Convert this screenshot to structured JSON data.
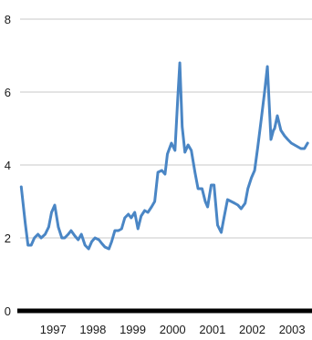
{
  "chart_data": {
    "type": "line",
    "title": "",
    "xlabel": "",
    "ylabel": "",
    "ylim": [
      0,
      8
    ],
    "yticks": [
      0,
      2,
      4,
      6,
      8
    ],
    "xlim": [
      1996.67,
      2004.0
    ],
    "xticks": [
      {
        "value": 1997.5,
        "label": "1997"
      },
      {
        "value": 1998.5,
        "label": "1998"
      },
      {
        "value": 1999.5,
        "label": "1999"
      },
      {
        "value": 2000.5,
        "label": "2000"
      },
      {
        "value": 2001.5,
        "label": "2001"
      },
      {
        "value": 2002.5,
        "label": "2002"
      },
      {
        "value": 2003.5,
        "label": "2003"
      }
    ],
    "grid": true,
    "legend": "none",
    "color": "#4a86c5",
    "baseline_color": "#000000",
    "series": [
      {
        "x": [
          1996.7,
          1996.8,
          1996.87,
          1996.95,
          1997.03,
          1997.12,
          1997.2,
          1997.3,
          1997.39,
          1997.46,
          1997.54,
          1997.63,
          1997.72,
          1997.79,
          1997.88,
          1997.95,
          1998.05,
          1998.13,
          1998.21,
          1998.3,
          1998.39,
          1998.47,
          1998.55,
          1998.65,
          1998.72,
          1998.8,
          1998.9,
          1998.97,
          1999.05,
          1999.14,
          1999.22,
          1999.3,
          1999.39,
          1999.46,
          1999.55,
          1999.63,
          1999.71,
          1999.8,
          1999.88,
          1999.97,
          2000.05,
          2000.13,
          2000.23,
          2000.31,
          2000.37,
          2000.47,
          2000.56,
          2000.63,
          2000.68,
          2000.74,
          2000.81,
          2000.89,
          2000.97,
          2001.06,
          2001.14,
          2001.24,
          2001.32,
          2001.38,
          2001.47,
          2001.54,
          2001.63,
          2001.72,
          2001.79,
          2001.88,
          2001.97,
          2002.06,
          2002.14,
          2002.22,
          2002.32,
          2002.39,
          2002.48,
          2002.56,
          2002.64,
          2002.73,
          2002.81,
          2002.88,
          2002.97,
          2003.03,
          2003.06,
          2003.13,
          2003.22,
          2003.31,
          2003.39,
          2003.48,
          2003.56,
          2003.64,
          2003.72,
          2003.81,
          2003.89
        ],
        "values": [
          3.4,
          2.4,
          1.8,
          1.8,
          2.0,
          2.1,
          2.0,
          2.1,
          2.3,
          2.7,
          2.9,
          2.3,
          2.0,
          2.0,
          2.1,
          2.2,
          2.05,
          1.95,
          2.1,
          1.8,
          1.7,
          1.9,
          2.0,
          1.95,
          1.85,
          1.75,
          1.7,
          1.9,
          2.2,
          2.2,
          2.25,
          2.55,
          2.65,
          2.55,
          2.7,
          2.25,
          2.6,
          2.75,
          2.7,
          2.85,
          3.0,
          3.8,
          3.85,
          3.75,
          4.3,
          4.6,
          4.4,
          5.85,
          6.8,
          5.05,
          4.35,
          4.55,
          4.4,
          3.8,
          3.35,
          3.35,
          3.0,
          2.85,
          3.45,
          3.45,
          2.35,
          2.15,
          2.55,
          3.05,
          3.0,
          2.95,
          2.9,
          2.8,
          2.95,
          3.35,
          3.65,
          3.85,
          4.5,
          5.3,
          6.0,
          6.7,
          4.7,
          4.95,
          5.0,
          5.35,
          4.95,
          4.8,
          4.7,
          4.6,
          4.55,
          4.5,
          4.45,
          4.45,
          4.6
        ]
      }
    ]
  }
}
